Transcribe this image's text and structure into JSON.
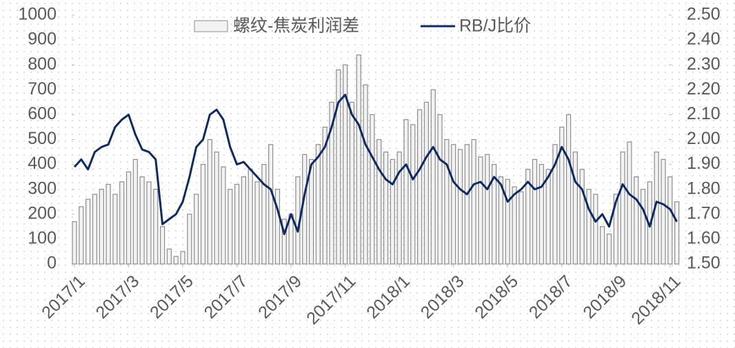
{
  "chart_data": {
    "type": "bar_line",
    "categories": [
      "2017/1",
      null,
      null,
      null,
      null,
      null,
      null,
      null,
      "2017/3",
      null,
      null,
      null,
      null,
      null,
      null,
      null,
      "2017/5",
      null,
      null,
      null,
      null,
      null,
      null,
      null,
      "2017/7",
      null,
      null,
      null,
      null,
      null,
      null,
      null,
      "2017/9",
      null,
      null,
      null,
      null,
      null,
      null,
      null,
      "2017/11",
      null,
      null,
      null,
      null,
      null,
      null,
      null,
      "2018/1",
      null,
      null,
      null,
      null,
      null,
      null,
      null,
      "2018/3",
      null,
      null,
      null,
      null,
      null,
      null,
      null,
      "2018/5",
      null,
      null,
      null,
      null,
      null,
      null,
      null,
      "2018/7",
      null,
      null,
      null,
      null,
      null,
      null,
      null,
      "2018/9",
      null,
      null,
      null,
      null,
      null,
      null,
      null,
      "2018/11",
      null
    ],
    "series": [
      {
        "name": "螺纹-焦炭利润差",
        "type": "bar",
        "color": "#8c8c8c",
        "values": [
          170,
          230,
          260,
          280,
          300,
          320,
          280,
          330,
          370,
          420,
          350,
          330,
          300,
          150,
          60,
          30,
          50,
          200,
          280,
          400,
          500,
          450,
          390,
          300,
          320,
          350,
          380,
          330,
          400,
          480,
          300,
          180,
          200,
          350,
          440,
          420,
          480,
          550,
          650,
          780,
          800,
          650,
          840,
          720,
          600,
          500,
          450,
          420,
          450,
          580,
          560,
          620,
          650,
          700,
          600,
          500,
          480,
          460,
          480,
          500,
          430,
          440,
          400,
          350,
          340,
          310,
          290,
          380,
          420,
          400,
          380,
          480,
          550,
          600,
          450,
          380,
          300,
          280,
          150,
          120,
          280,
          450,
          490,
          350,
          300,
          330,
          450,
          420,
          350,
          250
        ]
      },
      {
        "name": "RB/J比价",
        "type": "line",
        "axis": "y2",
        "color": "#0d2a66",
        "values": [
          1.89,
          1.92,
          1.88,
          1.95,
          1.97,
          1.98,
          2.05,
          2.08,
          2.1,
          2.02,
          1.96,
          1.95,
          1.92,
          1.66,
          1.68,
          1.7,
          1.75,
          1.85,
          1.97,
          2.0,
          2.1,
          2.12,
          2.08,
          1.97,
          1.9,
          1.91,
          1.88,
          1.85,
          1.82,
          1.8,
          1.72,
          1.62,
          1.7,
          1.63,
          1.78,
          1.9,
          1.93,
          1.97,
          2.05,
          2.15,
          2.18,
          2.1,
          2.06,
          1.98,
          1.93,
          1.88,
          1.84,
          1.82,
          1.87,
          1.9,
          1.84,
          1.88,
          1.93,
          1.97,
          1.92,
          1.9,
          1.83,
          1.8,
          1.78,
          1.82,
          1.83,
          1.8,
          1.85,
          1.82,
          1.75,
          1.78,
          1.8,
          1.83,
          1.8,
          1.81,
          1.85,
          1.9,
          1.97,
          1.92,
          1.83,
          1.8,
          1.72,
          1.67,
          1.7,
          1.65,
          1.75,
          1.82,
          1.78,
          1.76,
          1.72,
          1.65,
          1.75,
          1.74,
          1.72,
          1.67
        ]
      }
    ],
    "ylim": [
      0,
      1000
    ],
    "yticks": [
      0,
      100,
      200,
      300,
      400,
      500,
      600,
      700,
      800,
      900,
      1000
    ],
    "y2lim": [
      1.5,
      2.5
    ],
    "y2ticks": [
      {
        "value": 1.5,
        "label": "1.50"
      },
      {
        "value": 1.6,
        "label": "1.60"
      },
      {
        "value": 1.7,
        "label": "1.70"
      },
      {
        "value": 1.8,
        "label": "1.80"
      },
      {
        "value": 1.9,
        "label": "1.90"
      },
      {
        "value": 2.0,
        "label": "2.00"
      },
      {
        "value": 2.1,
        "label": "2.10"
      },
      {
        "value": 2.2,
        "label": "2.20"
      },
      {
        "value": 2.3,
        "label": "2.30"
      },
      {
        "value": 2.4,
        "label": "2.40"
      },
      {
        "value": 2.5,
        "label": "2.50"
      }
    ],
    "legend": "top"
  }
}
